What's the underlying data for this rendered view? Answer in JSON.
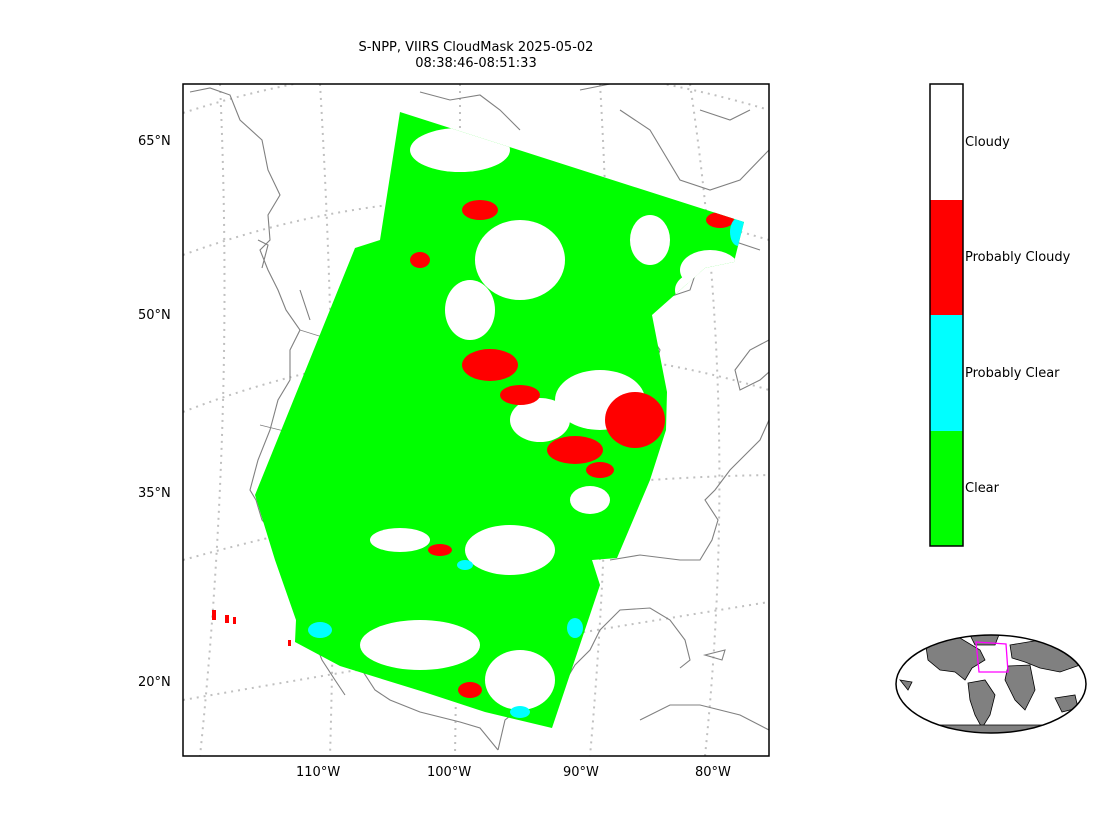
{
  "title": {
    "line1": "S-NPP, VIIRS CloudMask 2025-05-02",
    "line2": "08:38:46-08:51:33"
  },
  "map": {
    "lat_labels": [
      "65°N",
      "50°N",
      "35°N",
      "20°N"
    ],
    "lon_labels": [
      "110°W",
      "100°W",
      "90°W",
      "80°W"
    ],
    "coastline_color": "#808080",
    "graticule_color": "#c0c0c0"
  },
  "legend": {
    "classes": [
      {
        "label": "Cloudy",
        "color": "#ffffff"
      },
      {
        "label": "Probably Cloudy",
        "color": "#ff0000"
      },
      {
        "label": "Probably Clear",
        "color": "#00ffff"
      },
      {
        "label": "Clear",
        "color": "#00ff00"
      }
    ]
  },
  "inset": {
    "land_color": "#808080",
    "box_color": "#ff00ff"
  }
}
